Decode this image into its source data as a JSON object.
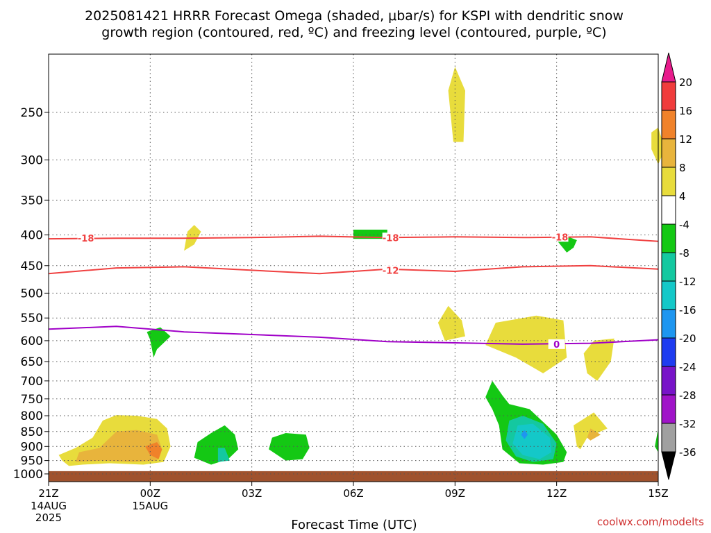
{
  "chart_data": {
    "type": "heatmap",
    "title_line1": "2025081421 HRRR Forecast Omega (shaded, μbar/s) for KSPI with dendritic snow",
    "title_line2": "growth region (contoured, red, ºC) and freezing level (contoured, purple, ºC)",
    "xlabel": "Forecast Time (UTC)",
    "watermark": "coolwx.com/modelts",
    "x_ticks": [
      {
        "h": 0,
        "label": "21Z",
        "sub1": "14AUG",
        "sub2": "2025"
      },
      {
        "h": 3,
        "label": "00Z",
        "sub1": "15AUG",
        "sub2": ""
      },
      {
        "h": 6,
        "label": "03Z",
        "sub1": "",
        "sub2": ""
      },
      {
        "h": 9,
        "label": "06Z",
        "sub1": "",
        "sub2": ""
      },
      {
        "h": 12,
        "label": "09Z",
        "sub1": "",
        "sub2": ""
      },
      {
        "h": 15,
        "label": "12Z",
        "sub1": "",
        "sub2": ""
      },
      {
        "h": 18,
        "label": "15Z",
        "sub1": "",
        "sub2": ""
      }
    ],
    "x_range_hours": [
      0,
      18
    ],
    "y_ticks": [
      250,
      300,
      350,
      400,
      450,
      500,
      550,
      600,
      650,
      700,
      750,
      800,
      850,
      900,
      950,
      1000
    ],
    "y_range_hPa": [
      200,
      1030
    ],
    "y_scale": "log",
    "grid": true,
    "colorbar": {
      "labels": [
        "20",
        "16",
        "12",
        "8",
        "4",
        "-4",
        "-8",
        "-12",
        "-16",
        "-20",
        "-24",
        "-28",
        "-32",
        "-36"
      ],
      "colors": [
        "#e81b8c",
        "#f03c3c",
        "#f0822a",
        "#e8b43c",
        "#e8dc3c",
        "#ffffff",
        "#14c814",
        "#14c8a0",
        "#14c8c8",
        "#1e96f0",
        "#1e3cf0",
        "#7814c8",
        "#a014c8",
        "#a0a0a0",
        "#000000"
      ]
    },
    "contours": [
      {
        "name": "-18",
        "color": "#f04040",
        "points": [
          [
            0,
            406
          ],
          [
            2,
            405
          ],
          [
            4,
            405
          ],
          [
            6,
            404
          ],
          [
            8,
            402
          ],
          [
            10,
            404
          ],
          [
            12,
            403
          ],
          [
            14,
            404
          ],
          [
            16,
            403
          ],
          [
            18,
            410
          ]
        ],
        "labels": [
          {
            "h": 1.1,
            "p": 405
          },
          {
            "h": 10.1,
            "p": 404
          },
          {
            "h": 15.1,
            "p": 403
          }
        ]
      },
      {
        "name": "-12",
        "color": "#f04040",
        "points": [
          [
            0,
            464
          ],
          [
            2,
            454
          ],
          [
            4,
            452
          ],
          [
            6,
            458
          ],
          [
            8,
            464
          ],
          [
            10,
            456
          ],
          [
            12,
            460
          ],
          [
            14,
            452
          ],
          [
            16,
            450
          ],
          [
            18,
            456
          ]
        ],
        "labels": [
          {
            "h": 10.1,
            "p": 458
          }
        ]
      },
      {
        "name": "0",
        "color": "#a000c8",
        "points": [
          [
            0,
            574
          ],
          [
            2,
            568
          ],
          [
            4,
            580
          ],
          [
            6,
            586
          ],
          [
            8,
            592
          ],
          [
            10,
            602
          ],
          [
            12,
            605
          ],
          [
            14,
            608
          ],
          [
            16,
            606
          ],
          [
            18,
            598
          ]
        ],
        "labels": [
          {
            "h": 15.0,
            "p": 608
          }
        ]
      }
    ],
    "omega_regions": [
      {
        "value": 4,
        "color": "#e8dc3c",
        "points": [
          [
            0.4,
            950
          ],
          [
            0.3,
            930
          ],
          [
            0.8,
            905
          ],
          [
            1.3,
            870
          ],
          [
            1.6,
            815
          ],
          [
            2.0,
            798
          ],
          [
            2.6,
            800
          ],
          [
            3.2,
            810
          ],
          [
            3.5,
            840
          ],
          [
            3.6,
            900
          ],
          [
            3.4,
            955
          ],
          [
            2.8,
            965
          ],
          [
            1.8,
            960
          ],
          [
            1.0,
            965
          ],
          [
            0.6,
            970
          ]
        ]
      },
      {
        "value": 8,
        "color": "#e8b43c",
        "points": [
          [
            0.8,
            955
          ],
          [
            0.9,
            920
          ],
          [
            1.5,
            905
          ],
          [
            2.0,
            850
          ],
          [
            2.6,
            845
          ],
          [
            3.2,
            860
          ],
          [
            3.35,
            910
          ],
          [
            3.2,
            950
          ],
          [
            2.5,
            955
          ],
          [
            1.6,
            950
          ]
        ]
      },
      {
        "value": 12,
        "color": "#f0822a",
        "points": [
          [
            3.0,
            930
          ],
          [
            2.85,
            900
          ],
          [
            3.2,
            885
          ],
          [
            3.35,
            910
          ],
          [
            3.25,
            945
          ]
        ]
      },
      {
        "value": 4,
        "color": "#e8dc3c",
        "points": [
          [
            4.0,
            425
          ],
          [
            4.3,
            415
          ],
          [
            4.5,
            395
          ],
          [
            4.3,
            385
          ],
          [
            4.1,
            395
          ]
        ]
      },
      {
        "value": -4,
        "color": "#14c814",
        "points": [
          [
            3.0,
            598
          ],
          [
            2.9,
            580
          ],
          [
            3.3,
            570
          ],
          [
            3.6,
            590
          ],
          [
            3.2,
            620
          ],
          [
            3.1,
            640
          ]
        ]
      },
      {
        "value": -4,
        "color": "#14c814",
        "points": [
          [
            4.3,
            940
          ],
          [
            4.4,
            885
          ],
          [
            4.8,
            855
          ],
          [
            5.2,
            830
          ],
          [
            5.5,
            860
          ],
          [
            5.6,
            910
          ],
          [
            5.3,
            945
          ],
          [
            4.8,
            965
          ]
        ]
      },
      {
        "value": -8,
        "color": "#14c8a0",
        "points": [
          [
            5.0,
            955
          ],
          [
            5.0,
            905
          ],
          [
            5.2,
            905
          ],
          [
            5.35,
            950
          ]
        ]
      },
      {
        "value": -4,
        "color": "#14c814",
        "points": [
          [
            6.5,
            910
          ],
          [
            6.6,
            870
          ],
          [
            7.0,
            855
          ],
          [
            7.6,
            860
          ],
          [
            7.7,
            905
          ],
          [
            7.5,
            945
          ],
          [
            7.0,
            950
          ]
        ]
      },
      {
        "value": -4,
        "color": "#14c814",
        "points": [
          [
            9.0,
            406
          ],
          [
            9.0,
            392
          ],
          [
            10.0,
            392
          ],
          [
            10.0,
            406
          ]
        ]
      },
      {
        "value": 4,
        "color": "#e8dc3c",
        "points": [
          [
            12.0,
            210
          ],
          [
            12.3,
            230
          ],
          [
            12.25,
            280
          ],
          [
            11.95,
            280
          ],
          [
            11.8,
            230
          ]
        ]
      },
      {
        "value": 4,
        "color": "#e8dc3c",
        "points": [
          [
            11.7,
            600
          ],
          [
            11.5,
            560
          ],
          [
            11.8,
            525
          ],
          [
            12.2,
            555
          ],
          [
            12.3,
            590
          ]
        ]
      },
      {
        "value": 4,
        "color": "#e8dc3c",
        "points": [
          [
            12.9,
            610
          ],
          [
            13.2,
            560
          ],
          [
            14.4,
            545
          ],
          [
            15.2,
            555
          ],
          [
            15.3,
            640
          ],
          [
            14.6,
            680
          ],
          [
            13.8,
            640
          ]
        ]
      },
      {
        "value": 4,
        "color": "#e8dc3c",
        "points": [
          [
            15.8,
            630
          ],
          [
            16.1,
            600
          ],
          [
            16.7,
            595
          ],
          [
            16.6,
            650
          ],
          [
            16.2,
            700
          ],
          [
            15.9,
            680
          ]
        ]
      },
      {
        "value": 4,
        "color": "#e8dc3c",
        "points": [
          [
            17.8,
            270
          ],
          [
            18.0,
            265
          ],
          [
            18.2,
            288
          ],
          [
            18.0,
            305
          ],
          [
            17.8,
            288
          ]
        ]
      },
      {
        "value": -4,
        "color": "#14c814",
        "points": [
          [
            12.9,
            745
          ],
          [
            13.1,
            700
          ],
          [
            13.4,
            740
          ],
          [
            13.6,
            765
          ],
          [
            14.2,
            780
          ],
          [
            15.0,
            860
          ],
          [
            15.3,
            920
          ],
          [
            15.2,
            955
          ],
          [
            14.6,
            965
          ],
          [
            13.9,
            960
          ],
          [
            13.4,
            910
          ],
          [
            13.3,
            830
          ],
          [
            13.1,
            780
          ]
        ]
      },
      {
        "value": -8,
        "color": "#14c8a0",
        "points": [
          [
            13.5,
            880
          ],
          [
            13.6,
            815
          ],
          [
            14.0,
            800
          ],
          [
            14.6,
            825
          ],
          [
            15.0,
            890
          ],
          [
            14.9,
            945
          ],
          [
            14.3,
            955
          ],
          [
            13.8,
            935
          ]
        ]
      },
      {
        "value": -12,
        "color": "#14c8c8",
        "points": [
          [
            13.7,
            890
          ],
          [
            13.85,
            830
          ],
          [
            14.3,
            825
          ],
          [
            14.8,
            870
          ],
          [
            14.85,
            920
          ],
          [
            14.5,
            945
          ],
          [
            14.0,
            930
          ]
        ]
      },
      {
        "value": -16,
        "color": "#1e96f0",
        "points": [
          [
            13.95,
            860
          ],
          [
            14.05,
            845
          ],
          [
            14.15,
            860
          ],
          [
            14.05,
            875
          ]
        ]
      },
      {
        "value": -4,
        "color": "#14c814",
        "points": [
          [
            15.0,
            408
          ],
          [
            15.2,
            400
          ],
          [
            15.6,
            408
          ],
          [
            15.5,
            420
          ],
          [
            15.3,
            428
          ]
        ]
      },
      {
        "value": 4,
        "color": "#e8dc3c",
        "points": [
          [
            15.6,
            900
          ],
          [
            15.5,
            830
          ],
          [
            16.1,
            790
          ],
          [
            16.5,
            840
          ],
          [
            15.9,
            870
          ],
          [
            15.7,
            910
          ]
        ]
      },
      {
        "value": 8,
        "color": "#e8b43c",
        "points": [
          [
            15.9,
            870
          ],
          [
            16.0,
            840
          ],
          [
            16.3,
            860
          ],
          [
            16.0,
            880
          ]
        ]
      },
      {
        "value": -4,
        "color": "#14c814",
        "points": [
          [
            17.9,
            900
          ],
          [
            18.0,
            840
          ],
          [
            18.0,
            920
          ]
        ]
      }
    ],
    "ground_p": 1000
  }
}
